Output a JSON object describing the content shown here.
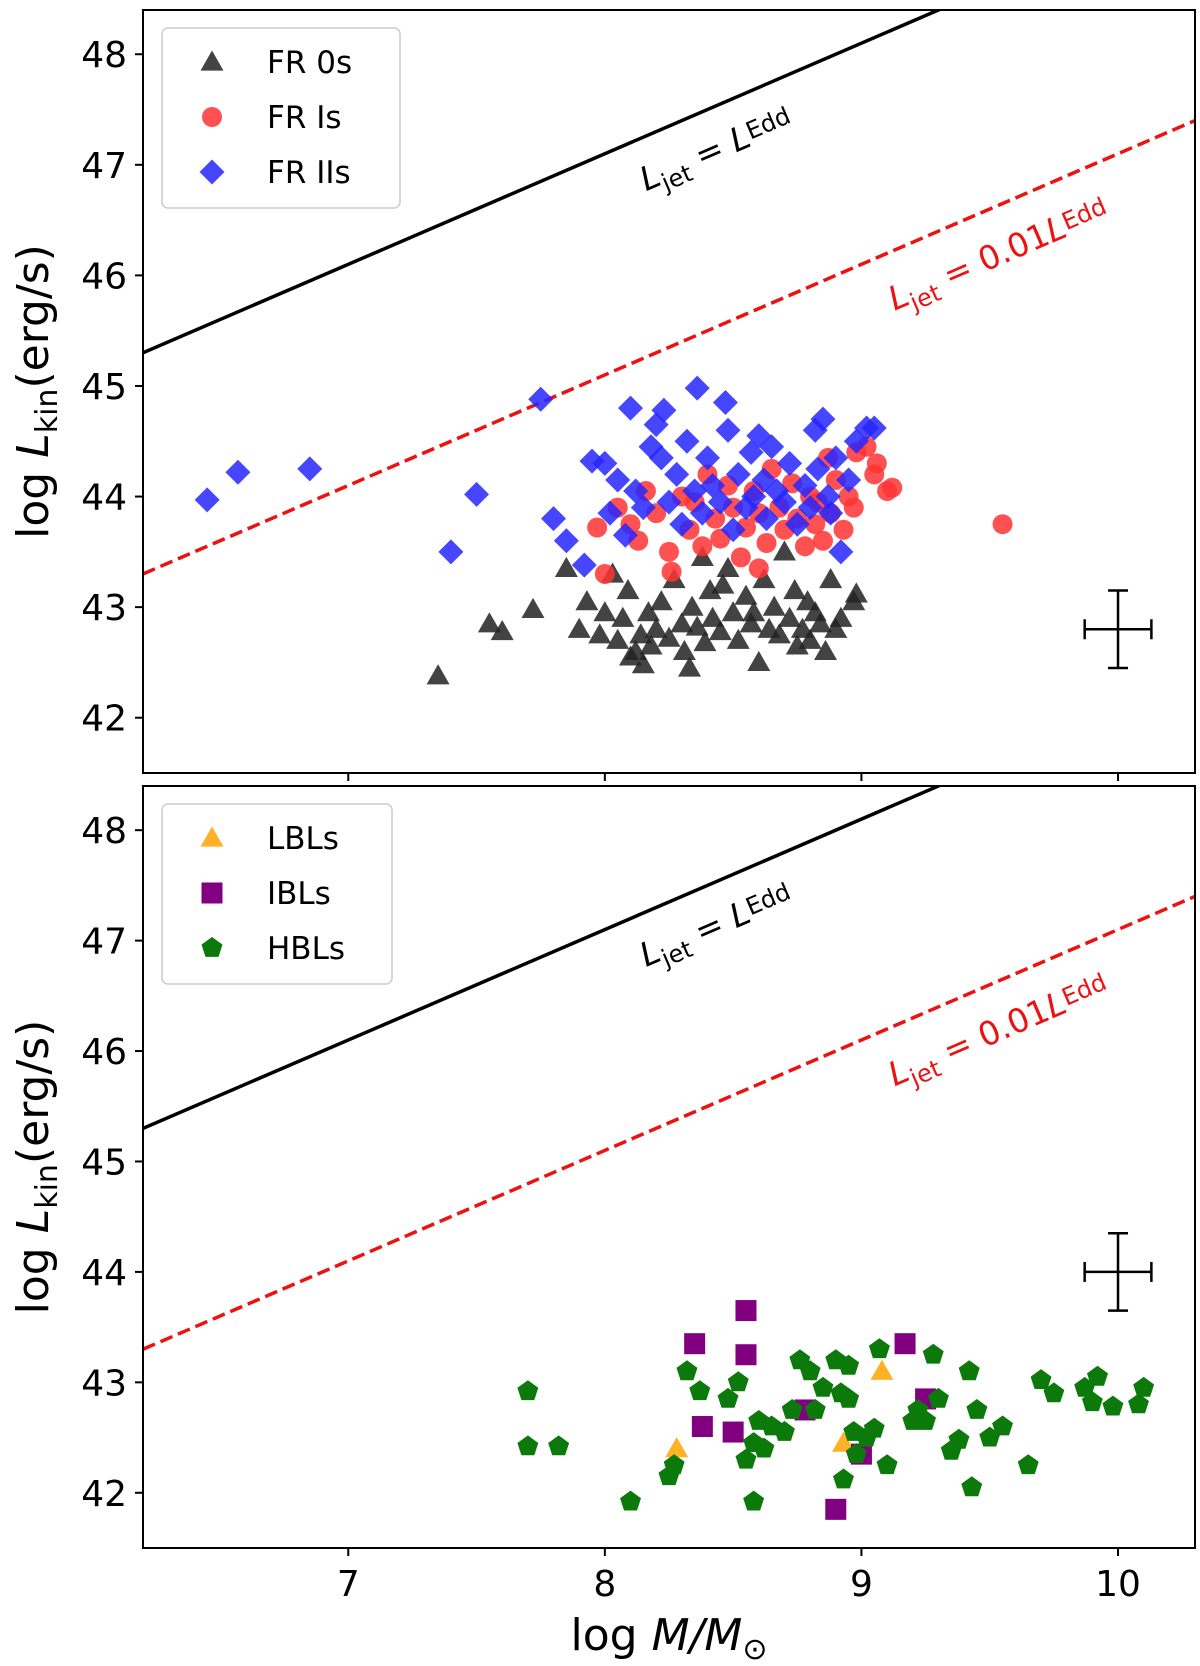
{
  "chart_data": [
    {
      "type": "scatter",
      "panel": "top",
      "xlabel_prefix": "log",
      "xlabel_main": "M/M",
      "xlabel_sub": "⊙",
      "ylabel_prefix": "log",
      "ylabel_main": "L",
      "ylabel_sub": "kin",
      "ylabel_suffix": "(erg/s)",
      "xlim": [
        6.2,
        10.3
      ],
      "ylim": [
        41.5,
        48.4
      ],
      "xticks": [
        7,
        8,
        9,
        10
      ],
      "yticks": [
        42,
        43,
        44,
        45,
        46,
        47,
        48
      ],
      "show_x_tick_labels": false,
      "legend_position": "top-left",
      "lines": [
        {
          "name": "L_jet = L_Edd",
          "color": "#000000",
          "dash": "solid",
          "intercept_at_x0": 45.3,
          "slope": 1,
          "label_main": "L",
          "label_sub1": "jet",
          "label_eq": " = ",
          "label_main2": "L",
          "label_sub2": "Edd",
          "label_x": 8.45,
          "label_y": 47.05
        },
        {
          "name": "L_jet = 0.01 L_Edd",
          "color": "#ee1111",
          "dash": "dashed",
          "intercept_at_x0": 43.3,
          "slope": 1,
          "label_main": "L",
          "label_sub1": "jet",
          "label_eq": " = 0.01",
          "label_main2": "L",
          "label_sub2": "Edd",
          "label_x": 9.55,
          "label_y": 46.1
        }
      ],
      "errorbar": {
        "x": 10.0,
        "y": 42.8,
        "xerr": 0.13,
        "yerr": 0.35
      },
      "series": [
        {
          "name": "FR 0s",
          "marker": "triangle",
          "color": "#222222",
          "points": [
            [
              7.35,
              42.38
            ],
            [
              7.55,
              42.85
            ],
            [
              7.6,
              42.78
            ],
            [
              7.72,
              42.98
            ],
            [
              7.85,
              43.35
            ],
            [
              7.9,
              42.8
            ],
            [
              7.93,
              43.05
            ],
            [
              7.98,
              42.75
            ],
            [
              8.0,
              42.95
            ],
            [
              8.03,
              43.3
            ],
            [
              8.05,
              42.7
            ],
            [
              8.07,
              42.9
            ],
            [
              8.09,
              43.15
            ],
            [
              8.12,
              42.6
            ],
            [
              8.14,
              42.75
            ],
            [
              8.15,
              42.48
            ],
            [
              8.17,
              42.95
            ],
            [
              8.18,
              42.65
            ],
            [
              8.2,
              42.8
            ],
            [
              8.22,
              43.05
            ],
            [
              8.25,
              42.72
            ],
            [
              8.27,
              43.25
            ],
            [
              8.3,
              42.85
            ],
            [
              8.31,
              42.6
            ],
            [
              8.34,
              43.0
            ],
            [
              8.36,
              42.82
            ],
            [
              8.38,
              43.45
            ],
            [
              8.39,
              42.68
            ],
            [
              8.41,
              43.15
            ],
            [
              8.42,
              42.9
            ],
            [
              8.45,
              42.78
            ],
            [
              8.48,
              43.35
            ],
            [
              8.5,
              42.95
            ],
            [
              8.52,
              42.7
            ],
            [
              8.55,
              43.1
            ],
            [
              8.57,
              42.85
            ],
            [
              8.6,
              42.5
            ],
            [
              8.62,
              43.25
            ],
            [
              8.64,
              42.8
            ],
            [
              8.66,
              43.0
            ],
            [
              8.68,
              42.75
            ],
            [
              8.7,
              43.5
            ],
            [
              8.72,
              42.9
            ],
            [
              8.74,
              43.15
            ],
            [
              8.75,
              42.65
            ],
            [
              8.77,
              42.8
            ],
            [
              8.79,
              43.05
            ],
            [
              8.8,
              42.7
            ],
            [
              8.82,
              42.95
            ],
            [
              8.84,
              42.85
            ],
            [
              8.86,
              42.6
            ],
            [
              8.88,
              43.25
            ],
            [
              8.9,
              42.8
            ],
            [
              8.92,
              42.9
            ],
            [
              8.97,
              43.05
            ],
            [
              8.98,
              43.12
            ],
            [
              8.1,
              42.55
            ],
            [
              8.33,
              42.45
            ],
            [
              8.46,
              43.2
            ],
            [
              8.58,
              42.95
            ]
          ]
        },
        {
          "name": "FR Is",
          "marker": "circle",
          "color": "#ff3333",
          "points": [
            [
              7.97,
              43.72
            ],
            [
              8.0,
              43.3
            ],
            [
              8.05,
              43.9
            ],
            [
              8.1,
              43.75
            ],
            [
              8.13,
              43.6
            ],
            [
              8.16,
              44.05
            ],
            [
              8.2,
              43.85
            ],
            [
              8.25,
              43.5
            ],
            [
              8.26,
              43.32
            ],
            [
              8.3,
              44.0
            ],
            [
              8.33,
              43.7
            ],
            [
              8.35,
              43.95
            ],
            [
              8.38,
              43.55
            ],
            [
              8.4,
              44.2
            ],
            [
              8.43,
              43.8
            ],
            [
              8.45,
              43.62
            ],
            [
              8.48,
              44.1
            ],
            [
              8.5,
              43.9
            ],
            [
              8.53,
              43.45
            ],
            [
              8.55,
              43.72
            ],
            [
              8.58,
              44.05
            ],
            [
              8.6,
              43.85
            ],
            [
              8.6,
              43.35
            ],
            [
              8.63,
              43.58
            ],
            [
              8.65,
              44.25
            ],
            [
              8.68,
              43.9
            ],
            [
              8.7,
              43.7
            ],
            [
              8.73,
              44.12
            ],
            [
              8.75,
              43.8
            ],
            [
              8.78,
              43.55
            ],
            [
              8.8,
              44.0
            ],
            [
              8.82,
              43.75
            ],
            [
              8.83,
              43.95
            ],
            [
              8.85,
              43.6
            ],
            [
              8.87,
              44.35
            ],
            [
              8.88,
              43.85
            ],
            [
              8.9,
              44.15
            ],
            [
              8.93,
              43.7
            ],
            [
              8.95,
              44.0
            ],
            [
              8.97,
              43.9
            ],
            [
              8.98,
              44.4
            ],
            [
              9.02,
              44.45
            ],
            [
              9.05,
              44.2
            ],
            [
              9.06,
              44.3
            ],
            [
              9.1,
              44.05
            ],
            [
              9.12,
              44.08
            ],
            [
              9.55,
              43.75
            ]
          ]
        },
        {
          "name": "FR IIs",
          "marker": "diamond",
          "color": "#2626ff",
          "points": [
            [
              6.45,
              43.97
            ],
            [
              6.57,
              44.22
            ],
            [
              6.85,
              44.25
            ],
            [
              7.4,
              43.5
            ],
            [
              7.5,
              44.02
            ],
            [
              7.75,
              44.88
            ],
            [
              7.8,
              43.8
            ],
            [
              7.85,
              43.6
            ],
            [
              7.92,
              43.38
            ],
            [
              7.95,
              44.32
            ],
            [
              8.0,
              44.3
            ],
            [
              8.02,
              43.85
            ],
            [
              8.05,
              44.15
            ],
            [
              8.08,
              43.65
            ],
            [
              8.1,
              44.8
            ],
            [
              8.12,
              44.05
            ],
            [
              8.15,
              43.9
            ],
            [
              8.18,
              44.45
            ],
            [
              8.2,
              44.65
            ],
            [
              8.22,
              44.35
            ],
            [
              8.23,
              44.78
            ],
            [
              8.25,
              43.95
            ],
            [
              8.28,
              44.2
            ],
            [
              8.3,
              43.75
            ],
            [
              8.32,
              44.5
            ],
            [
              8.35,
              44.05
            ],
            [
              8.36,
              44.98
            ],
            [
              8.38,
              43.85
            ],
            [
              8.4,
              44.35
            ],
            [
              8.42,
              44.1
            ],
            [
              8.45,
              43.95
            ],
            [
              8.47,
              44.85
            ],
            [
              8.48,
              44.6
            ],
            [
              8.5,
              43.7
            ],
            [
              8.52,
              44.2
            ],
            [
              8.55,
              43.9
            ],
            [
              8.57,
              44.4
            ],
            [
              8.58,
              44.0
            ],
            [
              8.6,
              44.55
            ],
            [
              8.62,
              44.15
            ],
            [
              8.63,
              43.8
            ],
            [
              8.65,
              44.45
            ],
            [
              8.67,
              44.05
            ],
            [
              8.7,
              43.95
            ],
            [
              8.72,
              44.3
            ],
            [
              8.75,
              43.75
            ],
            [
              8.78,
              44.1
            ],
            [
              8.8,
              43.9
            ],
            [
              8.82,
              44.6
            ],
            [
              8.83,
              44.25
            ],
            [
              8.85,
              44.7
            ],
            [
              8.87,
              44.0
            ],
            [
              8.88,
              43.85
            ],
            [
              8.9,
              44.35
            ],
            [
              8.92,
              43.5
            ],
            [
              8.95,
              44.15
            ],
            [
              8.98,
              44.5
            ],
            [
              9.02,
              44.62
            ],
            [
              9.05,
              44.62
            ]
          ]
        }
      ]
    },
    {
      "type": "scatter",
      "panel": "bottom",
      "xlabel_prefix": "log",
      "xlabel_main": "M/M",
      "xlabel_sub": "⊙",
      "ylabel_prefix": "log",
      "ylabel_main": "L",
      "ylabel_sub": "kin",
      "ylabel_suffix": "(erg/s)",
      "xlim": [
        6.2,
        10.3
      ],
      "ylim": [
        41.5,
        48.4
      ],
      "xticks": [
        7,
        8,
        9,
        10
      ],
      "yticks": [
        42,
        43,
        44,
        45,
        46,
        47,
        48
      ],
      "xtick_labels": [
        "7",
        "8",
        "9",
        "10"
      ],
      "show_x_tick_labels": true,
      "legend_position": "top-left",
      "lines": [
        {
          "name": "L_jet = L_Edd",
          "color": "#000000",
          "dash": "solid",
          "intercept_at_x0": 45.3,
          "slope": 1,
          "label_main": "L",
          "label_sub1": "jet",
          "label_eq": " = ",
          "label_main2": "L",
          "label_sub2": "Edd",
          "label_x": 8.45,
          "label_y": 47.05
        },
        {
          "name": "L_jet = 0.01 L_Edd",
          "color": "#ee1111",
          "dash": "dashed",
          "intercept_at_x0": 43.3,
          "slope": 1,
          "label_main": "L",
          "label_sub1": "jet",
          "label_eq": " = 0.01",
          "label_main2": "L",
          "label_sub2": "Edd",
          "label_x": 9.55,
          "label_y": 46.1
        }
      ],
      "errorbar": {
        "x": 10.0,
        "y": 44.0,
        "xerr": 0.13,
        "yerr": 0.35
      },
      "series": [
        {
          "name": "LBLs",
          "marker": "triangle",
          "color": "#ffa500",
          "points": [
            [
              8.28,
              42.4
            ],
            [
              8.93,
              42.45
            ],
            [
              9.08,
              43.1
            ]
          ]
        },
        {
          "name": "IBLs",
          "marker": "square",
          "color": "#800080",
          "points": [
            [
              8.35,
              43.35
            ],
            [
              8.38,
              42.6
            ],
            [
              8.5,
              42.55
            ],
            [
              8.55,
              43.25
            ],
            [
              8.55,
              43.65
            ],
            [
              8.78,
              42.75
            ],
            [
              8.9,
              41.85
            ],
            [
              9.0,
              42.35
            ],
            [
              9.17,
              43.35
            ],
            [
              9.25,
              42.85
            ]
          ]
        },
        {
          "name": "HBLs",
          "marker": "pentagon",
          "color": "#0b7a0b",
          "points": [
            [
              7.7,
              42.92
            ],
            [
              7.7,
              42.42
            ],
            [
              7.82,
              42.42
            ],
            [
              8.1,
              41.92
            ],
            [
              8.25,
              42.15
            ],
            [
              8.27,
              42.25
            ],
            [
              8.32,
              43.1
            ],
            [
              8.37,
              42.92
            ],
            [
              8.48,
              42.85
            ],
            [
              8.52,
              43.0
            ],
            [
              8.55,
              42.3
            ],
            [
              8.58,
              41.92
            ],
            [
              8.58,
              42.45
            ],
            [
              8.6,
              42.65
            ],
            [
              8.62,
              42.4
            ],
            [
              8.65,
              42.6
            ],
            [
              8.7,
              42.55
            ],
            [
              8.73,
              42.75
            ],
            [
              8.76,
              43.2
            ],
            [
              8.8,
              43.1
            ],
            [
              8.82,
              42.75
            ],
            [
              8.85,
              42.95
            ],
            [
              8.9,
              43.2
            ],
            [
              8.92,
              42.9
            ],
            [
              8.93,
              42.12
            ],
            [
              8.95,
              43.15
            ],
            [
              8.95,
              42.85
            ],
            [
              8.97,
              42.55
            ],
            [
              8.98,
              42.35
            ],
            [
              9.02,
              42.5
            ],
            [
              9.05,
              42.58
            ],
            [
              9.07,
              43.3
            ],
            [
              9.1,
              42.25
            ],
            [
              9.2,
              42.65
            ],
            [
              9.22,
              42.75
            ],
            [
              9.25,
              42.65
            ],
            [
              9.28,
              43.25
            ],
            [
              9.3,
              42.85
            ],
            [
              9.35,
              42.38
            ],
            [
              9.38,
              42.48
            ],
            [
              9.42,
              43.1
            ],
            [
              9.43,
              42.05
            ],
            [
              9.45,
              42.75
            ],
            [
              9.5,
              42.5
            ],
            [
              9.55,
              42.6
            ],
            [
              9.65,
              42.25
            ],
            [
              9.7,
              43.02
            ],
            [
              9.75,
              42.9
            ],
            [
              9.87,
              42.95
            ],
            [
              9.9,
              42.82
            ],
            [
              9.92,
              43.05
            ],
            [
              9.98,
              42.78
            ],
            [
              10.08,
              42.8
            ],
            [
              10.1,
              42.95
            ]
          ]
        }
      ]
    }
  ]
}
